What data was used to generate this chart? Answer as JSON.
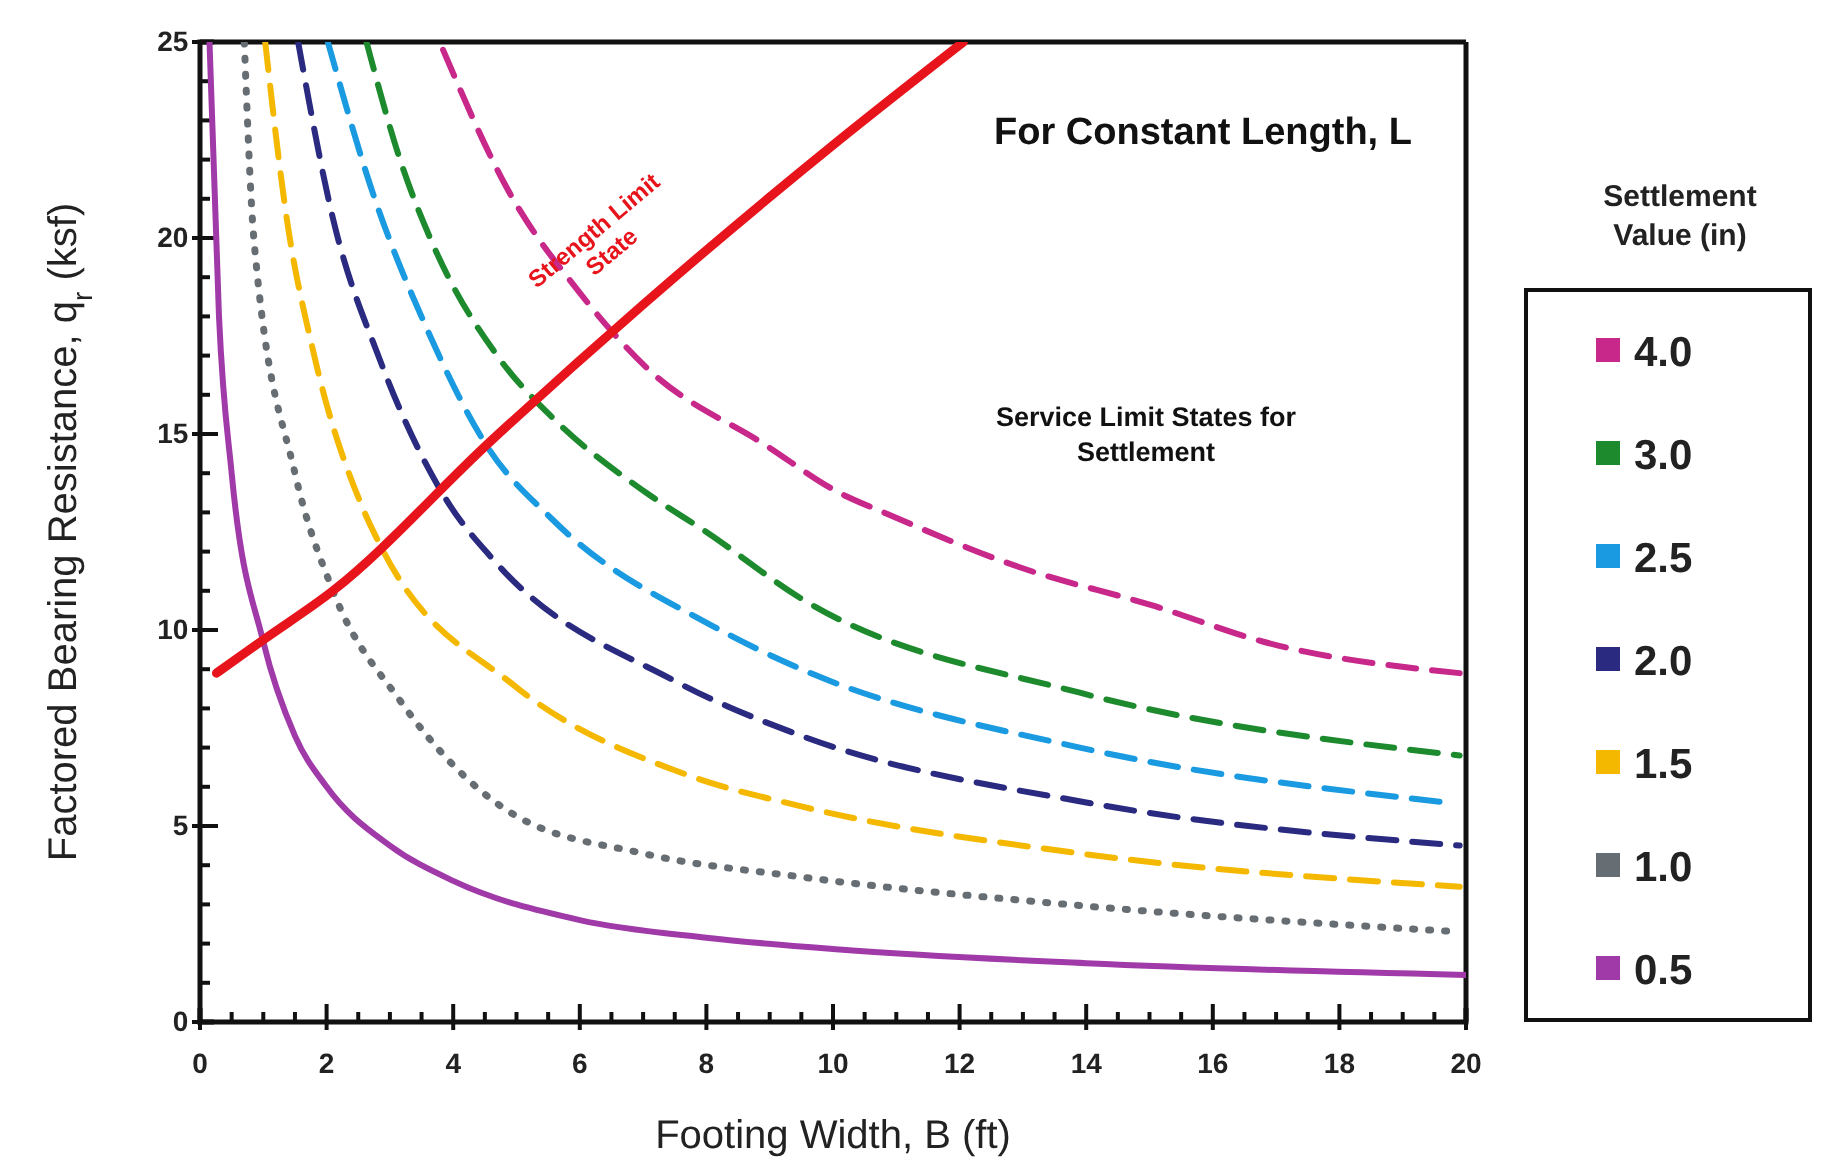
{
  "chart_data": {
    "type": "line",
    "title": "For Constant Length, L",
    "xlabel": "Footing Width, B (ft)",
    "ylabel": "Factored Bearing Resistance, q$_{r}$ (ksf)",
    "legend_title": "Settlement Value (in)",
    "legend": "right",
    "annotations": [
      "Service Limit States for Settlement"
    ],
    "xlim": [
      0,
      20
    ],
    "ylim": [
      0,
      25
    ],
    "xticks": [
      0,
      {
        "value": 0.5,
        "label": null
      },
      {
        "value": 1,
        "label": null
      },
      {
        "value": 1.5,
        "label": null
      },
      2,
      {
        "value": 2.5,
        "label": null
      },
      {
        "value": 3,
        "label": null
      },
      {
        "value": 3.5,
        "label": null
      },
      4,
      {
        "value": 4.5,
        "label": null
      },
      {
        "value": 5,
        "label": null
      },
      {
        "value": 5.5,
        "label": null
      },
      6,
      {
        "value": 6.5,
        "label": null
      },
      {
        "value": 7,
        "label": null
      },
      {
        "value": 7.5,
        "label": null
      },
      8,
      {
        "value": 8.5,
        "label": null
      },
      {
        "value": 9,
        "label": null
      },
      {
        "value": 9.5,
        "label": null
      },
      10,
      {
        "value": 10.5,
        "label": null
      },
      {
        "value": 11,
        "label": null
      },
      {
        "value": 11.5,
        "label": null
      },
      12,
      {
        "value": 12.5,
        "label": null
      },
      {
        "value": 13,
        "label": null
      },
      {
        "value": 13.5,
        "label": null
      },
      14,
      {
        "value": 14.5,
        "label": null
      },
      {
        "value": 15,
        "label": null
      },
      {
        "value": 15.5,
        "label": null
      },
      16,
      {
        "value": 16.5,
        "label": null
      },
      {
        "value": 17,
        "label": null
      },
      {
        "value": 17.5,
        "label": null
      },
      18,
      {
        "value": 18.5,
        "label": null
      },
      {
        "value": 19,
        "label": null
      },
      {
        "value": 19.5,
        "label": null
      },
      20
    ],
    "yticks": [
      0,
      {
        "value": 1,
        "label": null
      },
      {
        "value": 2,
        "label": null
      },
      {
        "value": 3,
        "label": null
      },
      {
        "value": 4,
        "label": null
      },
      5,
      {
        "value": 6,
        "label": null
      },
      {
        "value": 7,
        "label": null
      },
      {
        "value": 8,
        "label": null
      },
      {
        "value": 9,
        "label": null
      },
      10,
      {
        "value": 11,
        "label": null
      },
      {
        "value": 12,
        "label": null
      },
      {
        "value": 13,
        "label": null
      },
      {
        "value": 14,
        "label": null
      },
      15,
      {
        "value": 16,
        "label": null
      },
      {
        "value": 17,
        "label": null
      },
      {
        "value": 18,
        "label": null
      },
      {
        "value": 19,
        "label": null
      },
      20,
      {
        "value": 21,
        "label": null
      },
      {
        "value": 22,
        "label": null
      },
      {
        "value": 23,
        "label": null
      },
      {
        "value": 24,
        "label": null
      },
      25
    ],
    "grid": false,
    "marker": "none",
    "series": [
      {
        "name": "4.0",
        "color": "#c8288a",
        "line_style": "dashed",
        "x": [
          3.84,
          4.84,
          6.0,
          7.05,
          8.95,
          10.1,
          10.8,
          12.95,
          15.1,
          16.8,
          19.9
        ],
        "values": [
          24.8,
          21.3,
          18.6,
          16.7,
          14.7,
          13.5,
          13.0,
          11.6,
          10.6,
          9.7,
          8.9
        ]
      },
      {
        "name": "3.0",
        "color": "#1e8a2e",
        "line_style": "dashed",
        "x": [
          2.63,
          3.16,
          3.69,
          4.74,
          5.58,
          7.05,
          8,
          9.5,
          13.9,
          19.9
        ],
        "values": [
          25,
          22,
          19.8,
          16.9,
          15.4,
          13.5,
          12.5,
          10.8,
          8.4,
          6.8
        ]
      },
      {
        "name": "2.5",
        "color": "#1a9ae0",
        "line_style": "dashed",
        "x": [
          2.02,
          2.74,
          3.58,
          4.53,
          5.58,
          8.1,
          9.5,
          13.9,
          19.7
        ],
        "values": [
          25,
          21.1,
          17.7,
          14.7,
          12.8,
          10.1,
          9.0,
          7.0,
          5.6
        ]
      },
      {
        "name": "2.0",
        "color": "#2a2a80",
        "line_style": "dashed",
        "x": [
          1.55,
          2.1,
          2.84,
          3.9,
          4.63,
          7.5,
          9.5,
          14,
          19.9
        ],
        "values": [
          25,
          20.5,
          16.9,
          13.3,
          11.8,
          8.7,
          7.3,
          5.6,
          4.5
        ]
      },
      {
        "name": "1.5",
        "color": "#f5b800",
        "line_style": "dashed",
        "x": [
          1.03,
          1.37,
          1.79,
          2.6,
          2.9,
          4.95,
          7.7,
          9.5,
          13.9,
          19.9
        ],
        "values": [
          25,
          20.5,
          17.1,
          13,
          12,
          8.6,
          6.3,
          5.5,
          4.3,
          3.45
        ]
      },
      {
        "name": "1.0",
        "color": "#666d73",
        "line_style": "dotted",
        "x": [
          0.7,
          0.85,
          1.5,
          2.1,
          3.16,
          4.95,
          7,
          9.5,
          13.7,
          19.9
        ],
        "values": [
          25,
          20,
          14,
          11,
          8.2,
          5.3,
          4.3,
          3.7,
          3.0,
          2.3
        ]
      },
      {
        "name": "0.5",
        "color": "#a03aa8",
        "line_style": "solid",
        "x": [
          0.15,
          0.3,
          0.5,
          1,
          1.5,
          2,
          3,
          4,
          6,
          8,
          10.1,
          14,
          20
        ],
        "values": [
          25,
          18,
          14,
          9.7,
          7.3,
          6.0,
          4.5,
          3.6,
          2.6,
          2.15,
          1.85,
          1.5,
          1.2
        ]
      },
      {
        "name": "Strength Limit State",
        "color": "#e8141c",
        "line_style": "solid",
        "x": [
          0.26,
          1,
          2.1,
          4.58,
          7,
          10.1,
          12.06
        ],
        "values": [
          8.9,
          9.75,
          11,
          14.8,
          18.3,
          22.5,
          25
        ]
      }
    ]
  }
}
